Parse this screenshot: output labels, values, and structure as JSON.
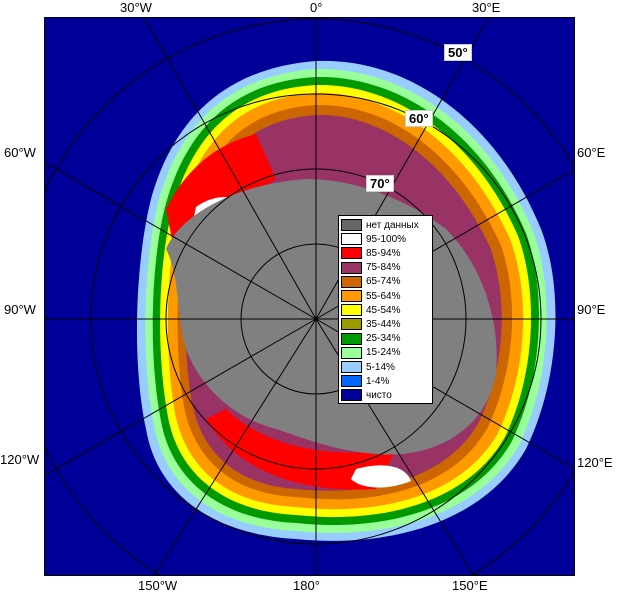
{
  "longitude_labels": {
    "top_30w": "30°W",
    "top_0": "0°",
    "top_30e": "30°E",
    "left_60w": "60°W",
    "right_60e": "60°E",
    "left_90w": "90°W",
    "right_90e": "90°E",
    "left_120w": "120°W",
    "right_120e": "120°E",
    "bottom_150w": "150°W",
    "bottom_180": "180°",
    "bottom_150e": "150°E"
  },
  "latitude_labels": {
    "lat50": "50°",
    "lat60": "60°",
    "lat70": "70°"
  },
  "legend": [
    {
      "label": "нет данных",
      "color": "#666666"
    },
    {
      "label": "95-100%",
      "color": "#ffffff"
    },
    {
      "label": "85-94%",
      "color": "#ff0000"
    },
    {
      "label": "75-84%",
      "color": "#993366"
    },
    {
      "label": "65-74%",
      "color": "#cc6600"
    },
    {
      "label": "55-64%",
      "color": "#ff9900"
    },
    {
      "label": "45-54%",
      "color": "#ffff00"
    },
    {
      "label": "35-44%",
      "color": "#999900"
    },
    {
      "label": "25-34%",
      "color": "#009900"
    },
    {
      "label": "15-24%",
      "color": "#99ff99"
    },
    {
      "label": "5-14%",
      "color": "#99ccff"
    },
    {
      "label": "1-4%",
      "color": "#0066ff"
    },
    {
      "label": "чисто",
      "color": "#000099"
    }
  ]
}
